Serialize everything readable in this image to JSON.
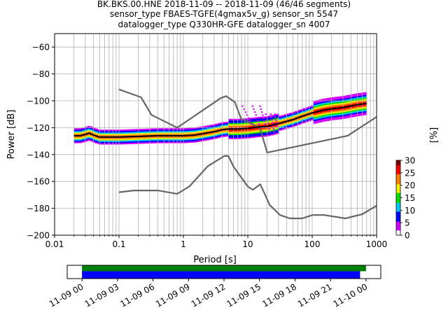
{
  "title_lines": [
    "BK.BKS.00.HNE   2018-11-09 -- 2018-11-09  (46/46 segments)",
    "sensor_type FBAES-TGFE(4gmax5v_g) sensor_sn 5547",
    "datalogger_type Q330HR-GFE datalogger_sn 4007"
  ],
  "chart_data": {
    "type": "heatmap",
    "title": "BK.BKS.00.HNE   2018-11-09 -- 2018-11-09  (46/46 segments)",
    "xlabel": "Period [s]",
    "ylabel": "Power [dB]",
    "xscale": "log",
    "xlim": [
      0.01,
      1000
    ],
    "ylim": [
      -200,
      -50
    ],
    "x_tick_labels": [
      "0.01",
      "0.1",
      "1",
      "10",
      "100",
      "1000"
    ],
    "x_ticks": [
      0.01,
      0.1,
      1,
      10,
      100,
      1000
    ],
    "y_ticks": [
      -200,
      -180,
      -160,
      -140,
      -120,
      -100,
      -80,
      -60
    ],
    "grid": true,
    "colorbar": {
      "label": "[%]",
      "ticks": [
        0,
        5,
        10,
        15,
        20,
        25,
        30
      ],
      "range": [
        0,
        30
      ],
      "colors": [
        "#ffffff",
        "#d600ff",
        "#0000ff",
        "#00c8ff",
        "#00e000",
        "#f0f000",
        "#ff8000",
        "#ff0000",
        "#800000"
      ]
    },
    "nlnm": {
      "period": [
        0.1,
        0.17,
        0.4,
        0.8,
        1.24,
        2.4,
        4.3,
        5,
        6,
        10,
        12,
        15.6,
        21.9,
        31.6,
        45,
        70,
        101,
        154,
        328,
        600,
        1000
      ],
      "power": [
        -168,
        -166.7,
        -166.7,
        -169.2,
        -163.7,
        -148.6,
        -141.1,
        -141.1,
        -149,
        -163.8,
        -166.2,
        -162.1,
        -177.5,
        -185,
        -187.5,
        -187.5,
        -185,
        -185,
        -187.5,
        -184.4,
        -178
      ]
    },
    "nhnm": {
      "period": [
        0.1,
        0.22,
        0.32,
        0.8,
        3.8,
        4.6,
        6.3,
        7.9,
        15.4,
        20,
        354.8,
        1000
      ],
      "power": [
        -91.5,
        -97.4,
        -110.5,
        -120,
        -98,
        -96.5,
        -101,
        -113.5,
        -120,
        -138.5,
        -126,
        -112
      ]
    },
    "mean_psd": {
      "period": [
        0.02,
        0.025,
        0.03,
        0.035,
        0.04,
        0.05,
        0.07,
        0.1,
        0.2,
        0.4,
        0.7,
        1,
        1.5,
        2,
        3,
        4,
        5,
        7,
        10,
        15,
        20,
        30,
        50,
        70,
        100,
        150,
        200,
        300,
        500,
        700
      ],
      "power": [
        -126,
        -126,
        -125,
        -124,
        -125.5,
        -127,
        -127,
        -127,
        -126.5,
        -126,
        -126,
        -126,
        -125.5,
        -124.5,
        -123,
        -121.5,
        -121,
        -121,
        -120.5,
        -119.5,
        -119,
        -117,
        -114,
        -111.5,
        -109,
        -107,
        -106,
        -105,
        -103,
        -102
      ]
    },
    "time_axis": {
      "tick_labels": [
        "11-09 00",
        "11-09 03",
        "11-09 06",
        "11-09 09",
        "11-09 12",
        "11-09 15",
        "11-09 18",
        "11-09 21",
        "11-10 00"
      ],
      "ticks_hours": [
        0,
        3,
        6,
        9,
        12,
        15,
        18,
        21,
        24
      ],
      "range_hours": [
        -1.25,
        25.25
      ],
      "data_coverage_hours": [
        0,
        24
      ],
      "psd_coverage_hours": [
        0,
        23.5
      ],
      "coverage_colors": [
        "#008000",
        "#0000ff"
      ]
    }
  }
}
